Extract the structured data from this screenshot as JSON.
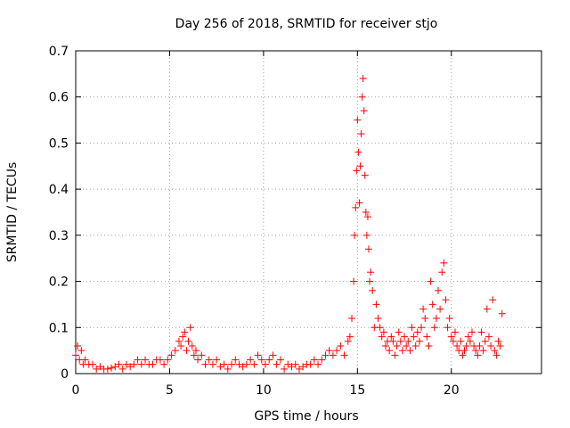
{
  "chart_data": {
    "type": "scatter",
    "title": "Day 256 of 2018, SRMTID for receiver stjo",
    "xlabel": "GPS time / hours",
    "ylabel": "SRMTID / TECUs",
    "xlim": [
      0,
      24.8
    ],
    "ylim": [
      0,
      0.7
    ],
    "x_ticks": [
      0,
      5,
      10,
      15,
      20
    ],
    "y_ticks": [
      0,
      0.1,
      0.2,
      0.3,
      0.4,
      0.5,
      0.6,
      0.7
    ],
    "x_tick_labels": [
      "0",
      "5",
      "10",
      "15",
      "20"
    ],
    "y_tick_labels": [
      "0",
      "0.1",
      "0.2",
      "0.3",
      "0.4",
      "0.5",
      "0.6",
      "0.7"
    ],
    "grid": true,
    "marker": "+",
    "color": "#ff0000",
    "series": [
      {
        "name": "SRMTID",
        "x": [
          0.0,
          0.1,
          0.2,
          0.3,
          0.4,
          0.5,
          0.7,
          0.9,
          1.1,
          1.3,
          1.5,
          1.7,
          1.9,
          2.1,
          2.3,
          2.5,
          2.7,
          2.9,
          3.1,
          3.3,
          3.5,
          3.7,
          3.9,
          4.1,
          4.3,
          4.5,
          4.7,
          4.9,
          5.1,
          5.3,
          5.5,
          5.6,
          5.7,
          5.8,
          5.9,
          6.0,
          6.1,
          6.2,
          6.3,
          6.4,
          6.5,
          6.7,
          6.9,
          7.1,
          7.3,
          7.5,
          7.7,
          7.9,
          8.1,
          8.3,
          8.5,
          8.7,
          8.9,
          9.1,
          9.3,
          9.5,
          9.7,
          9.9,
          10.1,
          10.3,
          10.5,
          10.7,
          10.9,
          11.1,
          11.3,
          11.5,
          11.7,
          11.9,
          12.1,
          12.3,
          12.5,
          12.7,
          12.9,
          13.1,
          13.3,
          13.5,
          13.7,
          13.9,
          14.1,
          14.3,
          14.5,
          14.6,
          14.7,
          14.8,
          14.85,
          14.9,
          14.95,
          15.0,
          15.05,
          15.1,
          15.15,
          15.2,
          15.25,
          15.3,
          15.35,
          15.4,
          15.45,
          15.5,
          15.55,
          15.6,
          15.65,
          15.7,
          15.8,
          15.9,
          16.0,
          16.1,
          16.2,
          16.3,
          16.4,
          16.5,
          16.6,
          16.7,
          16.8,
          16.9,
          17.0,
          17.1,
          17.2,
          17.3,
          17.4,
          17.5,
          17.6,
          17.7,
          17.8,
          17.9,
          18.0,
          18.1,
          18.2,
          18.3,
          18.4,
          18.5,
          18.6,
          18.7,
          18.8,
          18.9,
          19.0,
          19.1,
          19.2,
          19.3,
          19.4,
          19.5,
          19.6,
          19.7,
          19.8,
          19.9,
          20.0,
          20.1,
          20.2,
          20.3,
          20.4,
          20.5,
          20.6,
          20.7,
          20.8,
          20.9,
          21.0,
          21.1,
          21.2,
          21.3,
          21.4,
          21.5,
          21.6,
          21.7,
          21.8,
          21.9,
          22.0,
          22.1,
          22.2,
          22.3,
          22.4,
          22.5,
          22.6,
          22.7
        ],
        "y": [
          0.04,
          0.06,
          0.03,
          0.05,
          0.02,
          0.03,
          0.02,
          0.02,
          0.01,
          0.015,
          0.01,
          0.01,
          0.012,
          0.015,
          0.02,
          0.01,
          0.02,
          0.015,
          0.02,
          0.03,
          0.02,
          0.03,
          0.02,
          0.02,
          0.03,
          0.03,
          0.02,
          0.03,
          0.04,
          0.05,
          0.07,
          0.06,
          0.08,
          0.09,
          0.05,
          0.07,
          0.1,
          0.06,
          0.04,
          0.05,
          0.03,
          0.04,
          0.02,
          0.03,
          0.02,
          0.03,
          0.015,
          0.02,
          0.01,
          0.02,
          0.03,
          0.02,
          0.015,
          0.02,
          0.03,
          0.02,
          0.04,
          0.03,
          0.02,
          0.03,
          0.04,
          0.02,
          0.03,
          0.01,
          0.02,
          0.015,
          0.02,
          0.01,
          0.015,
          0.02,
          0.02,
          0.03,
          0.02,
          0.03,
          0.04,
          0.05,
          0.04,
          0.05,
          0.06,
          0.04,
          0.07,
          0.08,
          0.12,
          0.2,
          0.3,
          0.36,
          0.44,
          0.55,
          0.48,
          0.37,
          0.45,
          0.52,
          0.6,
          0.64,
          0.57,
          0.43,
          0.35,
          0.3,
          0.34,
          0.27,
          0.2,
          0.22,
          0.18,
          0.1,
          0.15,
          0.12,
          0.1,
          0.08,
          0.09,
          0.06,
          0.07,
          0.05,
          0.08,
          0.07,
          0.04,
          0.06,
          0.09,
          0.07,
          0.05,
          0.08,
          0.06,
          0.07,
          0.05,
          0.1,
          0.08,
          0.06,
          0.09,
          0.07,
          0.1,
          0.14,
          0.12,
          0.08,
          0.06,
          0.2,
          0.15,
          0.1,
          0.12,
          0.18,
          0.14,
          0.22,
          0.24,
          0.16,
          0.1,
          0.12,
          0.08,
          0.07,
          0.09,
          0.06,
          0.05,
          0.07,
          0.04,
          0.05,
          0.06,
          0.08,
          0.07,
          0.09,
          0.06,
          0.05,
          0.04,
          0.06,
          0.09,
          0.05,
          0.07,
          0.14,
          0.08,
          0.06,
          0.16,
          0.05,
          0.04,
          0.07,
          0.06,
          0.13
        ]
      }
    ]
  }
}
